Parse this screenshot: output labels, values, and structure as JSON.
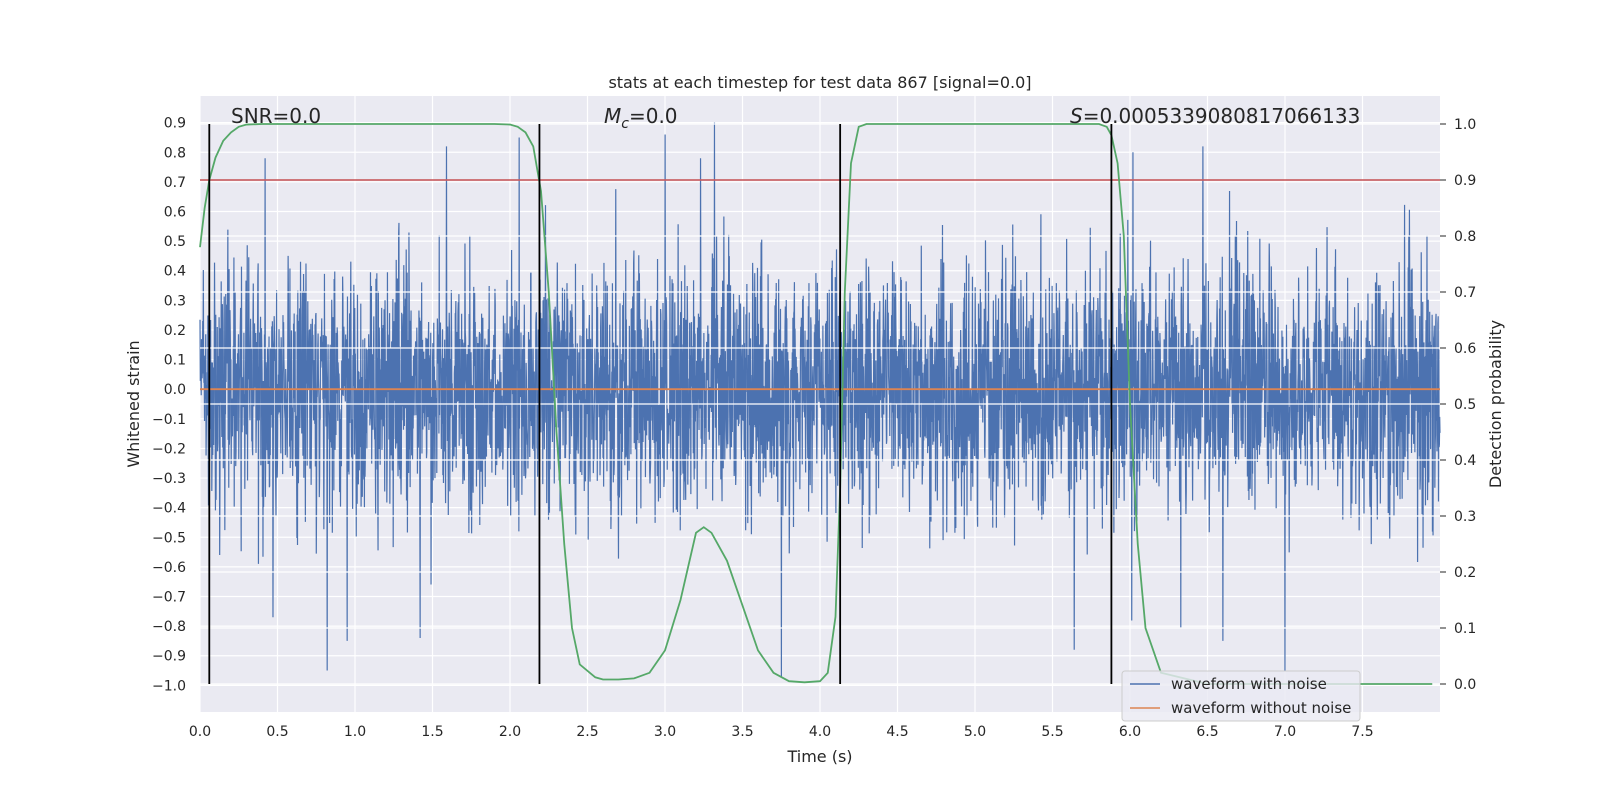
{
  "chart_data": {
    "type": "line",
    "title": "stats at each timestep for test data 867 [signal=0.0]",
    "xlabel": "Time (s)",
    "ylabel": "Whitened strain",
    "y2label": "Detection probability",
    "xlim": [
      0.0,
      8.0
    ],
    "ylim": [
      -1.09,
      0.99
    ],
    "y2lim": [
      -0.05,
      1.05
    ],
    "x_ticks": [
      0.0,
      0.5,
      1.0,
      1.5,
      2.0,
      2.5,
      3.0,
      3.5,
      4.0,
      4.5,
      5.0,
      5.5,
      6.0,
      6.5,
      7.0,
      7.5
    ],
    "x_tick_labels": [
      "0.0",
      "0.5",
      "1.0",
      "1.5",
      "2.0",
      "2.5",
      "3.0",
      "3.5",
      "4.0",
      "4.5",
      "5.0",
      "5.5",
      "6.0",
      "6.5",
      "7.0",
      "7.5"
    ],
    "y_ticks": [
      0.9,
      0.8,
      0.7,
      0.6,
      0.5,
      0.4,
      0.3,
      0.2,
      0.1,
      0.0,
      -0.1,
      -0.2,
      -0.3,
      -0.4,
      -0.5,
      -0.6,
      -0.7,
      -0.8,
      -0.9,
      -1.0
    ],
    "y_tick_labels": [
      "0.9",
      "0.8",
      "0.7",
      "0.6",
      "0.5",
      "0.4",
      "0.3",
      "0.2",
      "0.1",
      "0.0",
      "−0.1",
      "−0.2",
      "−0.3",
      "−0.4",
      "−0.5",
      "−0.6",
      "−0.7",
      "−0.8",
      "−0.9",
      "−1.0"
    ],
    "y2_ticks": [
      1.0,
      0.9,
      0.8,
      0.7,
      0.6,
      0.5,
      0.4,
      0.3,
      0.2,
      0.1,
      0.0
    ],
    "y2_tick_labels": [
      "1.0",
      "0.9",
      "0.8",
      "0.7",
      "0.6",
      "0.5",
      "0.4",
      "0.3",
      "0.2",
      "0.1",
      "0.0"
    ],
    "grid": true,
    "legend_placement": "lower-right",
    "annotations": {
      "snr": "SNR=0.0",
      "mc_symbol": "M",
      "mc_subscript": "c",
      "mc_value": "=0.0",
      "s_symbol": "S",
      "s_value": "=0.0005339080817066133"
    },
    "threshold": {
      "y2": 0.9,
      "color": "#c44e52"
    },
    "vertical_markers_x": [
      0.06,
      2.19,
      4.13,
      5.88
    ],
    "series": [
      {
        "name": "waveform with noise",
        "color": "#4c72b0",
        "duration": 8.0,
        "n_samples": 4096,
        "seed": 867,
        "typical_abs_amplitude": 0.45,
        "peak_max": 0.9,
        "peak_min": -0.97,
        "spikes": [
          {
            "x": 0.42,
            "y": 0.78
          },
          {
            "x": 0.82,
            "y": -0.95
          },
          {
            "x": 0.95,
            "y": -0.85
          },
          {
            "x": 1.59,
            "y": 0.82
          },
          {
            "x": 2.06,
            "y": 0.85
          },
          {
            "x": 3.23,
            "y": 0.78
          },
          {
            "x": 3.32,
            "y": 0.9
          },
          {
            "x": 3.75,
            "y": -0.97
          },
          {
            "x": 6.02,
            "y": 0.8
          },
          {
            "x": 6.47,
            "y": 0.82
          },
          {
            "x": 7.0,
            "y": 0.9
          },
          {
            "x": 7.0,
            "y": -0.95
          },
          {
            "x": 5.64,
            "y": -0.88
          },
          {
            "x": 6.6,
            "y": -0.85
          },
          {
            "x": 1.42,
            "y": -0.84
          },
          {
            "x": 0.47,
            "y": -0.77
          },
          {
            "x": 3.0,
            "y": 0.86
          }
        ]
      },
      {
        "name": "waveform without noise",
        "color": "#dd8452",
        "x": [
          0.0,
          8.0
        ],
        "y": [
          0.0,
          0.0
        ]
      },
      {
        "name": "detection probability",
        "axis": "right",
        "color": "#55a868",
        "x": [
          0.0,
          0.03,
          0.06,
          0.1,
          0.15,
          0.2,
          0.25,
          0.3,
          0.4,
          0.6,
          1.0,
          1.5,
          1.9,
          2.0,
          2.05,
          2.1,
          2.15,
          2.2,
          2.25,
          2.3,
          2.35,
          2.4,
          2.45,
          2.55,
          2.6,
          2.7,
          2.8,
          2.9,
          3.0,
          3.1,
          3.2,
          3.25,
          3.3,
          3.4,
          3.5,
          3.6,
          3.7,
          3.8,
          3.9,
          4.0,
          4.05,
          4.1,
          4.13,
          4.16,
          4.2,
          4.25,
          4.3,
          4.5,
          5.0,
          5.5,
          5.7,
          5.8,
          5.85,
          5.88,
          5.92,
          5.96,
          6.0,
          6.05,
          6.1,
          6.2,
          6.5,
          7.0,
          7.5,
          7.95
        ],
        "y": [
          0.78,
          0.85,
          0.9,
          0.94,
          0.97,
          0.985,
          0.995,
          0.999,
          1.0,
          1.0,
          1.0,
          1.0,
          1.0,
          0.999,
          0.995,
          0.985,
          0.96,
          0.88,
          0.7,
          0.45,
          0.25,
          0.1,
          0.035,
          0.012,
          0.008,
          0.008,
          0.01,
          0.02,
          0.06,
          0.15,
          0.27,
          0.28,
          0.27,
          0.22,
          0.14,
          0.06,
          0.02,
          0.005,
          0.003,
          0.005,
          0.02,
          0.12,
          0.35,
          0.7,
          0.93,
          0.995,
          1.0,
          1.0,
          1.0,
          1.0,
          1.0,
          1.0,
          0.995,
          0.98,
          0.93,
          0.8,
          0.5,
          0.25,
          0.1,
          0.02,
          0.0,
          0.0,
          0.0,
          0.0
        ]
      }
    ]
  }
}
